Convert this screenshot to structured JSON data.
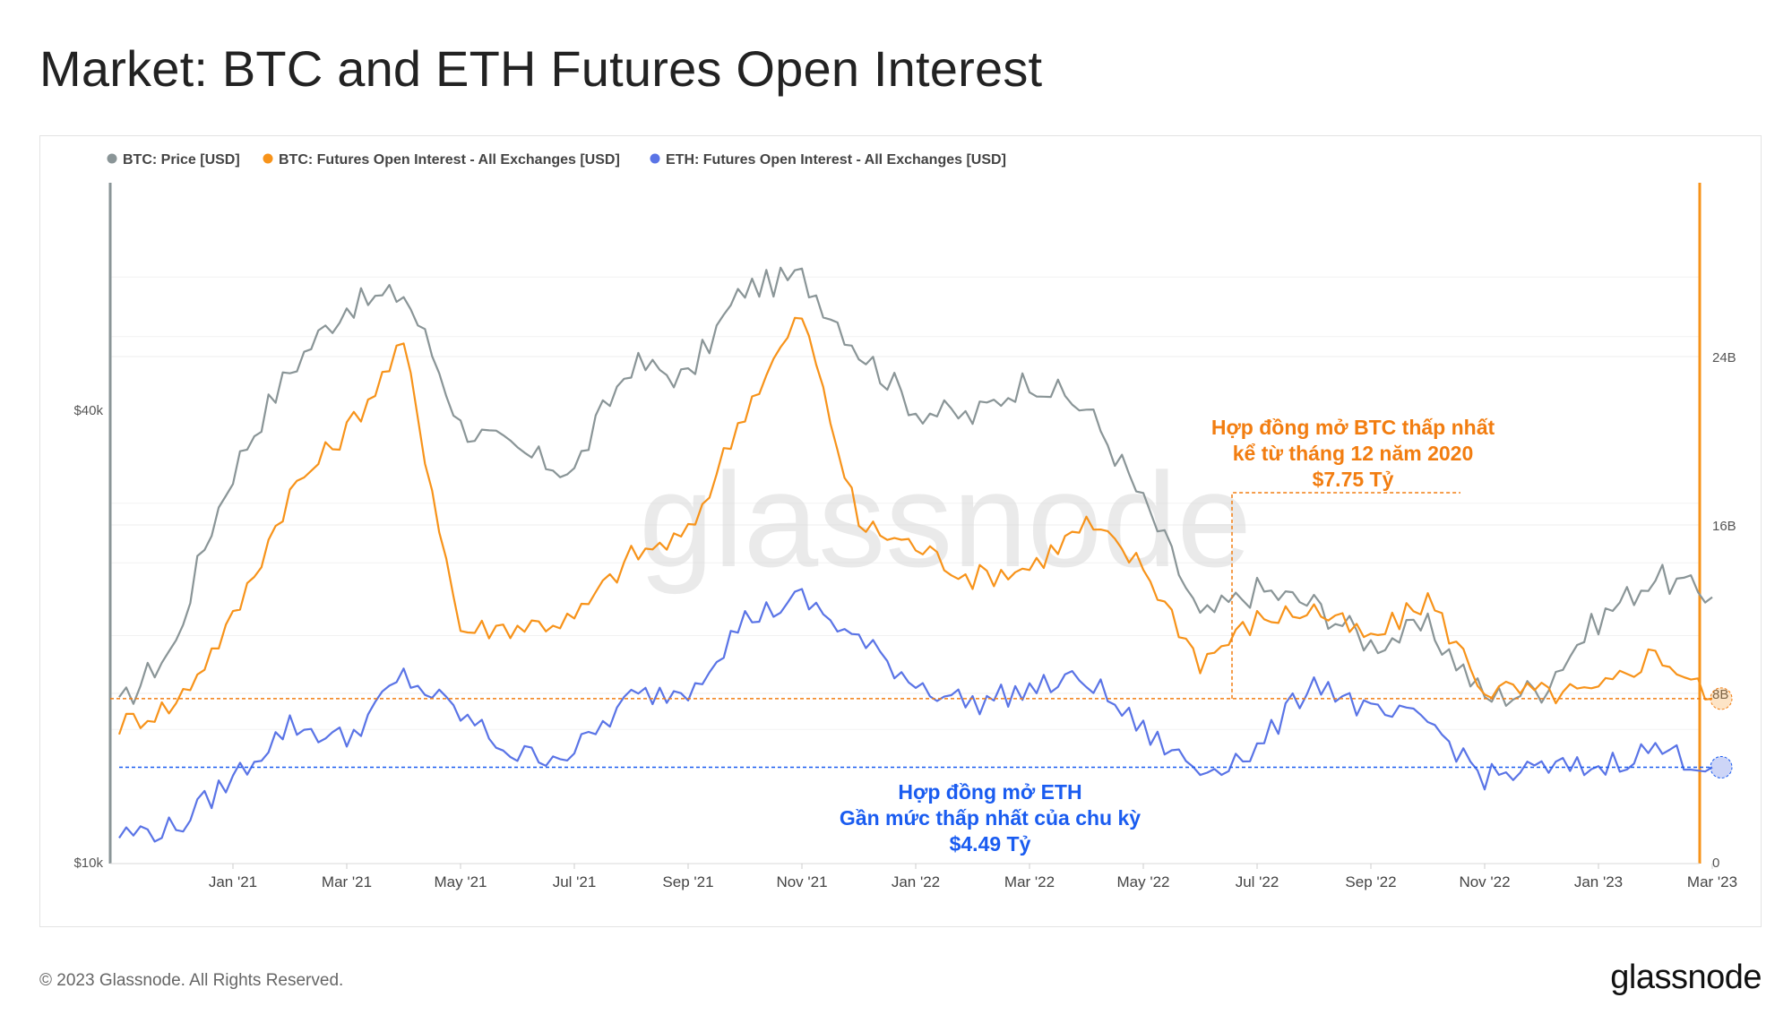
{
  "page": {
    "title": "Market: BTC and ETH Futures Open Interest",
    "copyright": "© 2023 Glassnode. All Rights Reserved.",
    "logo_text": "glassnode",
    "watermark": "glassnode"
  },
  "colors": {
    "btc_price": "#8a9597",
    "btc_oi": "#f7931a",
    "eth_oi": "#5a74e6",
    "annotation_btc": "#f27d10",
    "annotation_eth": "#1a5cf0"
  },
  "annotations": {
    "btc_lines": [
      "Hợp đồng mở BTC thấp nhất",
      "kể từ tháng 12 năm 2020",
      "$7.75 Tỷ"
    ],
    "eth_lines": [
      "Hợp đồng mở ETH",
      "Gần mức thấp nhất của chu kỳ",
      "$4.49 Tỷ"
    ]
  },
  "chart_data": {
    "type": "line",
    "legend_position": "top-left",
    "x_tick_labels": [
      "Jan '21",
      "Mar '21",
      "May '21",
      "Jul '21",
      "Sep '21",
      "Nov '21",
      "Jan '22",
      "Mar '22",
      "May '22",
      "Jul '22",
      "Sep '22",
      "Nov '22",
      "Jan '23",
      "Mar '23"
    ],
    "y_left": {
      "scale": "log",
      "tick_labels": [
        "$10k",
        "$40k"
      ]
    },
    "y_right": {
      "scale": "linear",
      "range": [
        0,
        32
      ],
      "tick_labels": [
        "0",
        "8B",
        "16B",
        "24B"
      ]
    },
    "x": [
      "2020-11",
      "2020-12",
      "2021-01",
      "2021-02",
      "2021-03",
      "2021-04",
      "2021-05",
      "2021-06",
      "2021-07",
      "2021-08",
      "2021-09",
      "2021-10",
      "2021-11",
      "2021-12",
      "2022-01",
      "2022-02",
      "2022-03",
      "2022-04",
      "2022-05",
      "2022-06",
      "2022-07",
      "2022-08",
      "2022-09",
      "2022-10",
      "2022-11",
      "2022-12",
      "2023-01",
      "2023-02",
      "2023-03"
    ],
    "series": [
      {
        "name": "BTC: Price [USD]",
        "axis": "left",
        "values": [
          16000,
          19500,
          33000,
          45000,
          55000,
          57000,
          38000,
          35000,
          33000,
          46000,
          44000,
          58000,
          60000,
          48000,
          40000,
          39000,
          44000,
          40000,
          30000,
          21000,
          23000,
          22000,
          19500,
          20500,
          16500,
          17000,
          21000,
          24000,
          22500
        ]
      },
      {
        "name": "BTC: Futures Open Interest - All Exchanges [USD]",
        "axis": "right",
        "values": [
          6.5,
          7.5,
          11.5,
          17.5,
          20.5,
          24.5,
          11,
          11.2,
          11.5,
          14.5,
          15.5,
          21.5,
          26,
          16,
          15,
          13.5,
          14,
          16,
          14,
          9.5,
          11.5,
          12,
          10.5,
          12.5,
          8.2,
          8.0,
          8.0,
          10.0,
          7.75
        ]
      },
      {
        "name": "ETH: Futures Open Interest - All Exchanges [USD]",
        "axis": "right",
        "values": [
          1.3,
          1.6,
          4.0,
          6.5,
          5.8,
          8.8,
          7.0,
          5.0,
          5.2,
          7.8,
          8.2,
          11.5,
          12.5,
          10.5,
          8.5,
          7.5,
          8.2,
          8.7,
          6.2,
          4.3,
          5.3,
          8.7,
          7.0,
          6.7,
          4.0,
          4.4,
          4.5,
          5.4,
          4.49
        ]
      }
    ]
  }
}
